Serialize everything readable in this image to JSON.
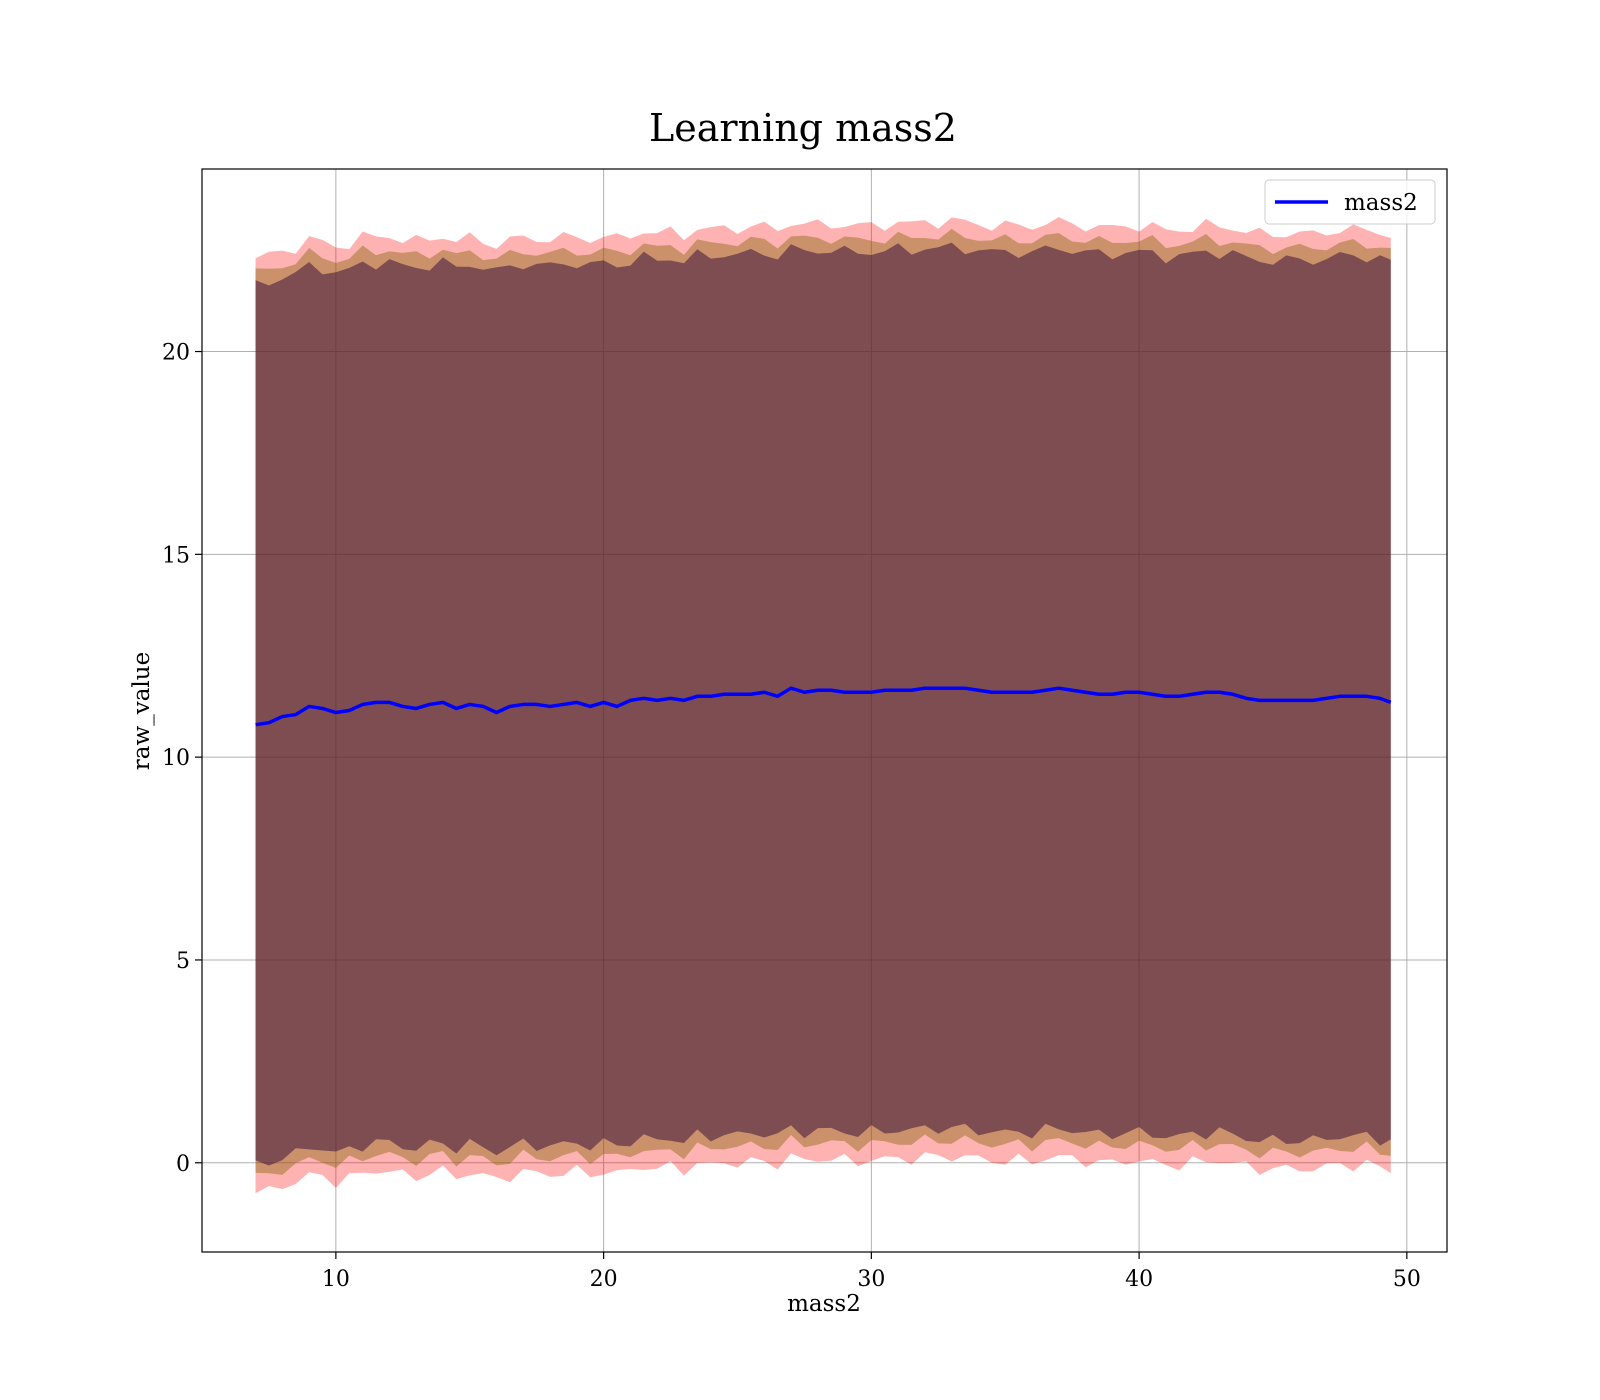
{
  "chart_data": {
    "type": "line",
    "title": "Learning mass2",
    "xlabel": "mass2",
    "ylabel": "raw_value",
    "xlim": [
      5,
      51.5
    ],
    "ylim": [
      -2.2,
      24.5
    ],
    "xticks": [
      10,
      20,
      30,
      40,
      50
    ],
    "yticks": [
      0,
      5,
      10,
      15,
      20
    ],
    "grid": true,
    "legend_position": "top-right",
    "colors": {
      "line": "#0000ff",
      "outer_band": "#ff0000",
      "middle_band": "#8b6914",
      "inner_band": "#2f0a3a"
    },
    "series": [
      {
        "name": "mass2",
        "x": [
          7.0,
          7.5,
          8.0,
          8.5,
          9.0,
          9.5,
          10.0,
          10.5,
          11.0,
          11.5,
          12.0,
          12.5,
          13.0,
          13.5,
          14.0,
          14.5,
          15.0,
          15.5,
          16.0,
          16.5,
          17.0,
          17.5,
          18.0,
          18.5,
          19.0,
          19.5,
          20.0,
          20.5,
          21.0,
          21.5,
          22.0,
          22.5,
          23.0,
          23.5,
          24.0,
          24.5,
          25.0,
          25.5,
          26.0,
          26.5,
          27.0,
          27.5,
          28.0,
          28.5,
          29.0,
          29.5,
          30.0,
          30.5,
          31.0,
          31.5,
          32.0,
          32.5,
          33.0,
          33.5,
          34.0,
          34.5,
          35.0,
          35.5,
          36.0,
          36.5,
          37.0,
          37.5,
          38.0,
          38.5,
          39.0,
          39.5,
          40.0,
          40.5,
          41.0,
          41.5,
          42.0,
          42.5,
          43.0,
          43.5,
          44.0,
          44.5,
          45.0,
          45.5,
          46.0,
          46.5,
          47.0,
          47.5,
          48.0,
          48.5,
          49.0,
          49.4
        ],
        "y": [
          10.8,
          10.85,
          11.0,
          11.05,
          11.25,
          11.2,
          11.1,
          11.15,
          11.3,
          11.35,
          11.35,
          11.25,
          11.2,
          11.3,
          11.35,
          11.2,
          11.3,
          11.25,
          11.1,
          11.25,
          11.3,
          11.3,
          11.25,
          11.3,
          11.35,
          11.25,
          11.35,
          11.25,
          11.4,
          11.45,
          11.4,
          11.45,
          11.4,
          11.5,
          11.5,
          11.55,
          11.55,
          11.55,
          11.6,
          11.5,
          11.7,
          11.6,
          11.65,
          11.65,
          11.6,
          11.6,
          11.6,
          11.65,
          11.65,
          11.65,
          11.7,
          11.7,
          11.7,
          11.7,
          11.65,
          11.6,
          11.6,
          11.6,
          11.6,
          11.65,
          11.7,
          11.65,
          11.6,
          11.55,
          11.55,
          11.6,
          11.6,
          11.55,
          11.5,
          11.5,
          11.55,
          11.6,
          11.6,
          11.55,
          11.45,
          11.4,
          11.4,
          11.4,
          11.4,
          11.4,
          11.45,
          11.5,
          11.5,
          11.5,
          11.45,
          11.35
        ]
      }
    ],
    "bands": [
      {
        "upper_offset": 11.5,
        "lower_offset": -11.55
      },
      {
        "upper_offset": 11.15,
        "lower_offset": -11.15
      },
      {
        "upper_offset": 10.85,
        "lower_offset": -10.85
      }
    ]
  }
}
